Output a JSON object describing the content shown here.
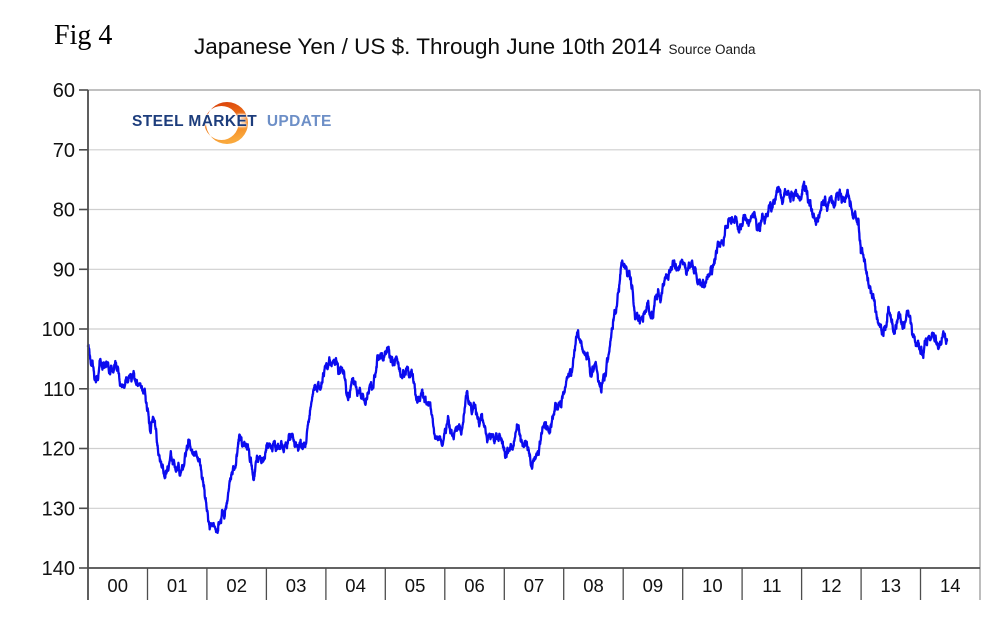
{
  "fig_label": "Fig 4",
  "title": "Japanese Yen / US $. Through June 10th 2014",
  "source": "Source Oanda",
  "logo": {
    "word1": "STEEL",
    "word2": "MARKET",
    "word3": "UPDATE",
    "navy": "#1d3d7c",
    "light_blue": "#6d8fc7",
    "orange_top": "#d63a0a",
    "orange_mid": "#f07818",
    "orange_tip": "#f9a83c"
  },
  "chart_data": {
    "type": "line",
    "title": "Japanese Yen / US $. Through June 10th 2014",
    "source": "Oanda",
    "series_name": "Japanese Yen per US Dollar (daily)",
    "line_color": "#0b0bef",
    "grid_color": "#cfcfcf",
    "frame_color": "#9a9a9a",
    "axis_color": "#4d4d4d",
    "label_color": "#111111",
    "y_ticks": [
      60,
      70,
      80,
      90,
      100,
      110,
      120,
      130,
      140
    ],
    "y_min": 60,
    "y_max": 140,
    "y_axis_direction": "inverted_down",
    "grid": "horizontal_only",
    "legend": "none",
    "x_labels": [
      "00",
      "01",
      "02",
      "03",
      "04",
      "05",
      "06",
      "07",
      "08",
      "09",
      "10",
      "11",
      "12",
      "13",
      "14"
    ],
    "x_start_year": 2000,
    "x_end_year_edge": 2015,
    "x_data_end": 2014.445,
    "start_value": 101.7,
    "monthly_values_note": "approx mid-month JPY/USD anchors read from chart, Jan..Dec",
    "monthly": {
      "2000": [
        105.3,
        109.4,
        106.4,
        105.5,
        108.3,
        106.2,
        108.0,
        108.2,
        106.8,
        108.5,
        109.0,
        112.2
      ],
      "2001": [
        116.6,
        116.1,
        121.3,
        123.8,
        121.6,
        122.2,
        124.6,
        121.4,
        118.9,
        121.3,
        122.3,
        127.6
      ],
      "2002": [
        132.7,
        133.6,
        131.2,
        131.0,
        126.4,
        123.3,
        117.9,
        119.0,
        120.5,
        123.9,
        121.6,
        122.2
      ],
      "2003": [
        118.7,
        119.3,
        118.6,
        119.9,
        117.4,
        118.3,
        118.7,
        118.6,
        115.1,
        109.6,
        109.2,
        107.8
      ],
      "2004": [
        106.3,
        105.4,
        106.7,
        106.5,
        111.8,
        109.4,
        109.3,
        110.2,
        110.1,
        108.9,
        104.9,
        103.8
      ],
      "2005": [
        103.3,
        104.9,
        105.3,
        107.2,
        106.6,
        108.6,
        111.9,
        110.7,
        111.2,
        114.9,
        118.4,
        118.5
      ],
      "2006": [
        115.5,
        117.8,
        117.3,
        117.1,
        111.8,
        114.6,
        115.6,
        115.9,
        117.0,
        118.6,
        117.3,
        117.3
      ],
      "2007": [
        120.5,
        120.5,
        117.3,
        118.8,
        120.8,
        122.6,
        121.6,
        116.7,
        115.0,
        115.8,
        111.2,
        112.3
      ],
      "2008": [
        107.7,
        107.2,
        100.8,
        102.4,
        104.1,
        106.9,
        106.8,
        109.3,
        106.7,
        100.2,
        96.9,
        90.2
      ],
      "2009": [
        90.0,
        92.5,
        97.8,
        98.9,
        96.4,
        96.6,
        94.5,
        94.9,
        91.4,
        90.3,
        89.2,
        89.9
      ],
      "2010": [
        91.1,
        90.2,
        90.5,
        93.4,
        91.8,
        90.9,
        87.7,
        85.4,
        84.4,
        81.8,
        82.4,
        83.4
      ],
      "2011": [
        82.6,
        82.5,
        81.1,
        83.3,
        81.2,
        80.5,
        79.4,
        77.1,
        76.8,
        76.7,
        77.5,
        77.8
      ],
      "2012": [
        76.9,
        78.5,
        82.4,
        81.4,
        79.7,
        79.3,
        79.0,
        78.7,
        78.2,
        78.9,
        80.9,
        83.6
      ],
      "2013": [
        89.2,
        93.1,
        94.8,
        97.8,
        101.0,
        96.0,
        99.7,
        97.8,
        99.2,
        97.8,
        100.0,
        103.4
      ],
      "2014": [
        103.9,
        102.1,
        102.3,
        102.4,
        101.8,
        102.1
      ]
    }
  }
}
